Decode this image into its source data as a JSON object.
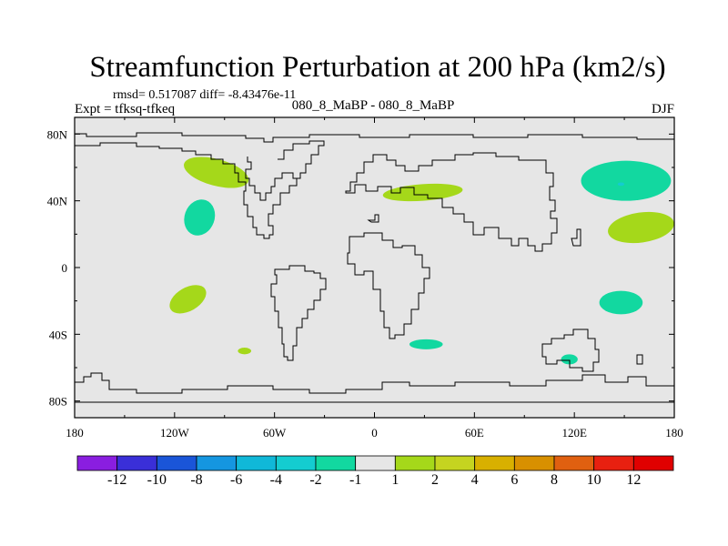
{
  "chart_data": {
    "type": "heatmap",
    "title": "Streamfunction Perturbation at 200 hPa (km2/s)",
    "stats_line": "rmsd= 0.517087 diff= -8.43476e-11",
    "left_label": "Expt = tfksq-tfkeq",
    "center_label": "080_8_MaBP - 080_8_MaBP",
    "right_label": "DJF",
    "x_axis": {
      "range": [
        -180,
        180
      ],
      "ticks": [
        -180,
        -120,
        -60,
        0,
        60,
        120,
        180
      ],
      "tick_labels": [
        "180",
        "120W",
        "60W",
        "0",
        "60E",
        "120E",
        "180"
      ]
    },
    "y_axis": {
      "range": [
        -90,
        90
      ],
      "ticks": [
        80,
        40,
        0,
        -40,
        -80
      ],
      "tick_labels": [
        "80N",
        "40N",
        "0",
        "40S",
        "80S"
      ]
    },
    "colorbar": {
      "labels": [
        "-12",
        "-10",
        "-8",
        "-6",
        "-4",
        "-2",
        "-1",
        "1",
        "2",
        "4",
        "6",
        "8",
        "10",
        "12"
      ],
      "colors": [
        "#8a1ee0",
        "#3a2fd8",
        "#1a55d8",
        "#1596e0",
        "#10b8d8",
        "#14ccd0",
        "#12d8a0",
        "#e6e6e6",
        "#a5d81a",
        "#c5d420",
        "#d8b000",
        "#d89000",
        "#e06010",
        "#e82010",
        "#e00000"
      ]
    },
    "blobs": [
      {
        "lon": -95,
        "lat": 57,
        "rx_deg": 20,
        "ry_deg": 8,
        "rot": 15,
        "color": "#a5d81a"
      },
      {
        "lon": 29,
        "lat": 45,
        "rx_deg": 24,
        "ry_deg": 5,
        "rot": -4,
        "color": "#a5d81a"
      },
      {
        "lon": -105,
        "lat": 30,
        "rx_deg": 9,
        "ry_deg": 11,
        "rot": 20,
        "color": "#12d8a0"
      },
      {
        "lon": -112,
        "lat": -19,
        "rx_deg": 12,
        "ry_deg": 7,
        "rot": -30,
        "color": "#a5d81a"
      },
      {
        "lon": -78,
        "lat": -50,
        "rx_deg": 4,
        "ry_deg": 2,
        "rot": 0,
        "color": "#a5d81a"
      },
      {
        "lon": 31,
        "lat": -46,
        "rx_deg": 10,
        "ry_deg": 3,
        "rot": 0,
        "color": "#12d8a0"
      },
      {
        "lon": 117,
        "lat": -55,
        "rx_deg": 5,
        "ry_deg": 3,
        "rot": 0,
        "color": "#12d8a0"
      },
      {
        "lon": 151,
        "lat": 52,
        "rx_deg": 27,
        "ry_deg": 12,
        "rot": 0,
        "color": "#12d8a0"
      },
      {
        "lon": 148,
        "lat": 50,
        "rx_deg": 2,
        "ry_deg": 1,
        "rot": 0,
        "color": "#14ccd0"
      },
      {
        "lon": 160,
        "lat": 24,
        "rx_deg": 20,
        "ry_deg": 9,
        "rot": -8,
        "color": "#a5d81a"
      },
      {
        "lon": 148,
        "lat": -21,
        "rx_deg": 13,
        "ry_deg": 7,
        "rot": 0,
        "color": "#12d8a0"
      }
    ]
  }
}
